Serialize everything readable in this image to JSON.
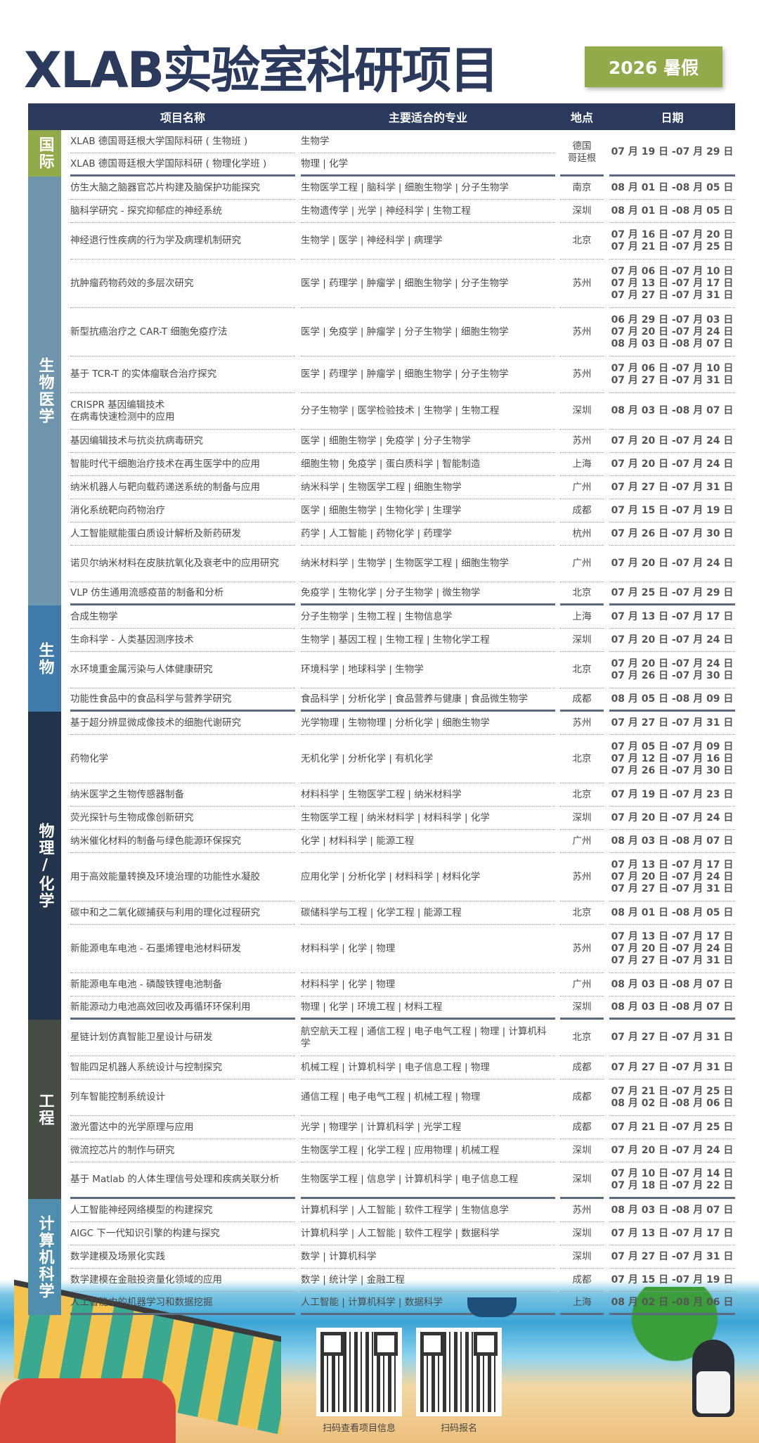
{
  "header": {
    "title": "XLAB实验室科研项目",
    "badge": "2026 暑假"
  },
  "columns": [
    "项目名称",
    "主要适合的专业",
    "地点",
    "日期"
  ],
  "colors": {
    "header": "#2b3a5c",
    "international": "#93aa4b",
    "biomed": "#6f95ad",
    "bio": "#3f7aaa",
    "physchem": "#22344c",
    "engineering": "#454c44",
    "cs": "#4f8eae"
  },
  "categories": [
    {
      "label": "国际",
      "color": "#93aa4b",
      "merged": true,
      "location": "德国\n哥廷根",
      "dates": [
        "07 月 19 日 -07 月 29 日"
      ],
      "rows": [
        {
          "name": "XLAB 德国哥廷根大学国际科研 ( 生物班 )",
          "majors": "生物学"
        },
        {
          "name": "XLAB 德国哥廷根大学国际科研 ( 物理化学班 )",
          "majors": "物理 | 化学"
        }
      ]
    },
    {
      "label": "生物医学",
      "color": "#6f95ad",
      "rows": [
        {
          "name": "仿生大脑之脑器官芯片构建及脑保护功能探究",
          "majors": "生物医学工程 | 脑科学 | 细胞生物学 | 分子生物学",
          "location": "南京",
          "dates": [
            "08 月 01 日 -08 月 05 日"
          ]
        },
        {
          "name": "脑科学研究 - 探究抑郁症的神经系统",
          "majors": "生物遗传学 | 光学 | 神经科学 | 生物工程",
          "location": "深圳",
          "dates": [
            "08 月 01 日 -08 月 05 日"
          ]
        },
        {
          "name": "神经退行性疾病的行为学及病理机制研究",
          "majors": "生物学 | 医学 | 神经科学 | 病理学",
          "location": "北京",
          "dates": [
            "07 月 16 日 -07 月 20 日",
            "07 月 21 日 -07 月 25 日"
          ]
        },
        {
          "name": "抗肿瘤药物药效的多层次研究",
          "majors": "医学 | 药理学 | 肿瘤学 | 细胞生物学 | 分子生物学",
          "location": "苏州",
          "dates": [
            "07 月 06 日 -07 月 10 日",
            "07 月 13 日 -07 月 17 日",
            "07 月 27 日 -07 月 31 日"
          ]
        },
        {
          "name": "新型抗癌治疗之 CAR-T 细胞免疫疗法",
          "majors": "医学 | 免疫学 | 肿瘤学 | 分子生物学 | 细胞生物学",
          "location": "苏州",
          "dates": [
            "06 月 29 日 -07 月 03 日",
            "07 月 20 日 -07 月 24 日",
            "08 月 03 日 -08 月 07 日"
          ]
        },
        {
          "name": "基于 TCR-T 的实体瘤联合治疗探究",
          "majors": "医学 | 药理学 | 肿瘤学 | 细胞生物学 | 分子生物学",
          "location": "苏州",
          "dates": [
            "07 月 06 日 -07 月 10 日",
            "07 月 27 日 -07 月 31 日"
          ]
        },
        {
          "name": "CRISPR 基因编辑技术\n在病毒快速检测中的应用",
          "majors": "分子生物学 | 医学检验技术 | 生物学 | 生物工程",
          "location": "深圳",
          "dates": [
            "08 月 03 日 -08 月 07 日"
          ]
        },
        {
          "name": "基因编辑技术与抗炎抗病毒研究",
          "majors": "医学 | 细胞生物学 | 免疫学 | 分子生物学",
          "location": "苏州",
          "dates": [
            "07 月 20 日 -07 月 24 日"
          ]
        },
        {
          "name": "智能时代干细胞治疗技术在再生医学中的应用",
          "majors": "细胞生物 | 免疫学 | 蛋白质科学 | 智能制造",
          "location": "上海",
          "dates": [
            "07 月 20 日 -07 月 24 日"
          ]
        },
        {
          "name": "纳米机器人与靶向载药递送系统的制备与应用",
          "majors": "纳米科学 | 生物医学工程 | 细胞生物学",
          "location": "广州",
          "dates": [
            "07 月 27 日 -07 月 31 日"
          ]
        },
        {
          "name": "消化系统靶向药物治疗",
          "majors": "医学 | 细胞生物学 | 生物化学 | 生理学",
          "location": "成都",
          "dates": [
            "07 月 15 日 -07 月 19 日"
          ]
        },
        {
          "name": "人工智能赋能蛋白质设计解析及新药研发",
          "majors": "药学 | 人工智能 | 药物化学 | 药理学",
          "location": "杭州",
          "dates": [
            "07 月 26 日 -07 月 30 日"
          ]
        },
        {
          "name": "诺贝尔纳米材料在皮肤抗氧化及衰老中的应用研究",
          "majors": "纳米材料学 | 生物学 | 生物医学工程 | 细胞生物学",
          "location": "广州",
          "dates": [
            "07 月 20 日 -07 月 24 日"
          ],
          "lines": 2
        },
        {
          "name": "VLP 仿生通用流感疫苗的制备和分析",
          "majors": "免疫学 | 生物化学 | 分子生物学 | 微生物学",
          "location": "北京",
          "dates": [
            "07 月 25 日 -07 月 29 日"
          ]
        }
      ]
    },
    {
      "label": "生物",
      "color": "#3f7aaa",
      "rows": [
        {
          "name": "合成生物学",
          "majors": "分子生物学 | 生物工程 | 生物信息学",
          "location": "上海",
          "dates": [
            "07 月 13 日 -07 月 17 日"
          ]
        },
        {
          "name": "生命科学 - 人类基因测序技术",
          "majors": "生物学 | 基因工程 | 生物工程 | 生物化学工程",
          "location": "深圳",
          "dates": [
            "07 月 20 日 -07 月 24 日"
          ]
        },
        {
          "name": "水环境重金属污染与人体健康研究",
          "majors": "环境科学 | 地球科学 | 生物学",
          "location": "北京",
          "dates": [
            "07 月 20 日 -07 月 24 日",
            "07 月 26 日 -07 月 30 日"
          ]
        },
        {
          "name": "功能性食品中的食品科学与营养学研究",
          "majors": "食品科学 | 分析化学 | 食品营养与健康 | 食品微生物学",
          "location": "成都",
          "dates": [
            "08 月 05 日 -08 月 09 日"
          ]
        }
      ]
    },
    {
      "label": "物理/化学",
      "color": "#22344c",
      "rows": [
        {
          "name": "基于超分辨显微成像技术的细胞代谢研究",
          "majors": "光学物理 | 生物物理 | 分析化学 | 细胞生物学",
          "location": "苏州",
          "dates": [
            "07 月 27 日 -07 月 31 日"
          ]
        },
        {
          "name": "药物化学",
          "majors": "无机化学 | 分析化学 | 有机化学",
          "location": "北京",
          "dates": [
            "07 月 05 日 -07 月 09 日",
            "07 月 12 日 -07 月 16 日",
            "07 月 26 日 -07 月 30 日"
          ]
        },
        {
          "name": "纳米医学之生物传感器制备",
          "majors": "材料科学 | 生物医学工程 | 纳米材料学",
          "location": "北京",
          "dates": [
            "07 月 19 日 -07 月 23 日"
          ]
        },
        {
          "name": "荧光探针与生物成像创新研究",
          "majors": "生物医学工程 | 纳米材料学 | 材料科学 | 化学",
          "location": "深圳",
          "dates": [
            "07 月 20 日 -07 月 24 日"
          ]
        },
        {
          "name": "纳米催化材料的制备与绿色能源环保探究",
          "majors": "化学 | 材料科学 | 能源工程",
          "location": "广州",
          "dates": [
            "08 月 03 日 -08 月 07 日"
          ]
        },
        {
          "name": "用于高效能量转换及环境治理的功能性水凝胶",
          "majors": "应用化学 | 分析化学 | 材料科学 | 材料化学",
          "location": "苏州",
          "dates": [
            "07 月 13 日 -07 月 17 日",
            "07 月 20 日 -07 月 24 日",
            "07 月 27 日 -07 月 31 日"
          ]
        },
        {
          "name": "碳中和之二氧化碳捕获与利用的理化过程研究",
          "majors": "碳储科学与工程 | 化学工程 | 能源工程",
          "location": "北京",
          "dates": [
            "08 月 01 日 -08 月 05 日"
          ]
        },
        {
          "name": "新能源电车电池 - 石墨烯锂电池材料研发",
          "majors": "材料科学 | 化学 | 物理",
          "location": "苏州",
          "dates": [
            "07 月 13 日 -07 月 17 日",
            "07 月 20 日 -07 月 24 日",
            "07 月 27 日 -07 月 31 日"
          ]
        },
        {
          "name": "新能源电车电池 - 磷酸铁锂电池制备",
          "majors": "材料科学 | 化学 | 物理",
          "location": "广州",
          "dates": [
            "08 月 03 日 -08 月 07 日"
          ]
        },
        {
          "name": "新能源动力电池高效回收及再循环环保利用",
          "majors": "物理 | 化学 | 环境工程 | 材料工程",
          "location": "深圳",
          "dates": [
            "08 月 03 日 -08 月 07 日"
          ]
        }
      ]
    },
    {
      "label": "工程",
      "color": "#454c44",
      "rows": [
        {
          "name": "星链计划仿真智能卫星设计与研发",
          "majors": "航空航天工程 | 通信工程 | 电子电气工程 | 物理 | 计算机科学",
          "location": "北京",
          "dates": [
            "07 月 27 日 -07 月 31 日"
          ],
          "lines": 2
        },
        {
          "name": "智能四足机器人系统设计与控制探究",
          "majors": "机械工程 | 计算机科学 | 电子信息工程 | 物理",
          "location": "成都",
          "dates": [
            "07 月 27 日 -07 月 31 日"
          ]
        },
        {
          "name": "列车智能控制系统设计",
          "majors": "通信工程 | 电子电气工程 | 机械工程 | 物理",
          "location": "成都",
          "dates": [
            "07 月 21 日 -07 月 25 日",
            "08 月 02 日 -08 月 06 日"
          ]
        },
        {
          "name": "激光雷达中的光学原理与应用",
          "majors": "光学 | 物理学 | 计算机科学 | 光学工程",
          "location": "成都",
          "dates": [
            "07 月 21 日 -07 月 25 日"
          ]
        },
        {
          "name": "微流控芯片的制作与研究",
          "majors": "生物医学工程 | 化学工程 | 应用物理 | 机械工程",
          "location": "深圳",
          "dates": [
            "07 月 20 日 -07 月 24 日"
          ]
        },
        {
          "name": "基于 Matlab 的人体生理信号处理和疾病关联分析",
          "majors": "生物医学工程 | 信息学 | 计算机科学 | 电子信息工程",
          "location": "深圳",
          "dates": [
            "07 月 10 日 -07 月 14 日",
            "07 月 18 日 -07 月 22 日"
          ]
        }
      ]
    },
    {
      "label": "计算机科学",
      "color": "#4f8eae",
      "rows": [
        {
          "name": "人工智能神经网络模型的构建探究",
          "majors": "计算机科学 | 人工智能 | 软件工程学 | 生物信息学",
          "location": "苏州",
          "dates": [
            "08 月 03 日 -08 月 07 日"
          ]
        },
        {
          "name": "AIGC 下一代知识引擎的构建与探究",
          "majors": "计算机科学 | 人工智能 | 软件工程学 | 数据科学",
          "location": "深圳",
          "dates": [
            "07 月 13 日 -07 月 17 日"
          ]
        },
        {
          "name": "数学建模及场景化实践",
          "majors": "数学 | 计算机科学",
          "location": "深圳",
          "dates": [
            "07 月 27 日 -07 月 31 日"
          ]
        },
        {
          "name": "数学建模在金融投资量化领域的应用",
          "majors": "数学 | 统计学 | 金融工程",
          "location": "成都",
          "dates": [
            "07 月 15 日 -07 月 19 日"
          ]
        },
        {
          "name": "人工智能中的机器学习和数据挖掘",
          "majors": "人工智能 | 计算机科学 | 数据科学",
          "location": "上海",
          "dates": [
            "08 月 02 日 -08 月 06 日"
          ]
        }
      ]
    }
  ],
  "qr": [
    {
      "caption": "扫码查看项目信息"
    },
    {
      "caption": "扫码报名"
    }
  ]
}
